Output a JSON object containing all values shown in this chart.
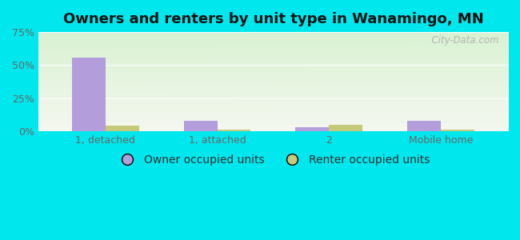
{
  "title": "Owners and renters by unit type in Wanamingo, MN",
  "categories": [
    "1, detached",
    "1, attached",
    "2",
    "Mobile home"
  ],
  "owner_values": [
    55.5,
    8.0,
    3.0,
    8.0
  ],
  "renter_values": [
    4.0,
    1.5,
    5.0,
    1.5
  ],
  "owner_color": "#b39ddb",
  "renter_color": "#c5c97a",
  "bar_width": 0.3,
  "ylim": [
    0,
    75
  ],
  "yticks": [
    0,
    25,
    50,
    75
  ],
  "yticklabels": [
    "0%",
    "25%",
    "50%",
    "75%"
  ],
  "background_outer": "#00e8ee",
  "watermark": "  City-Data.com",
  "legend_labels": [
    "Owner occupied units",
    "Renter occupied units"
  ],
  "title_fontsize": 13,
  "tick_fontsize": 9,
  "legend_fontsize": 10
}
